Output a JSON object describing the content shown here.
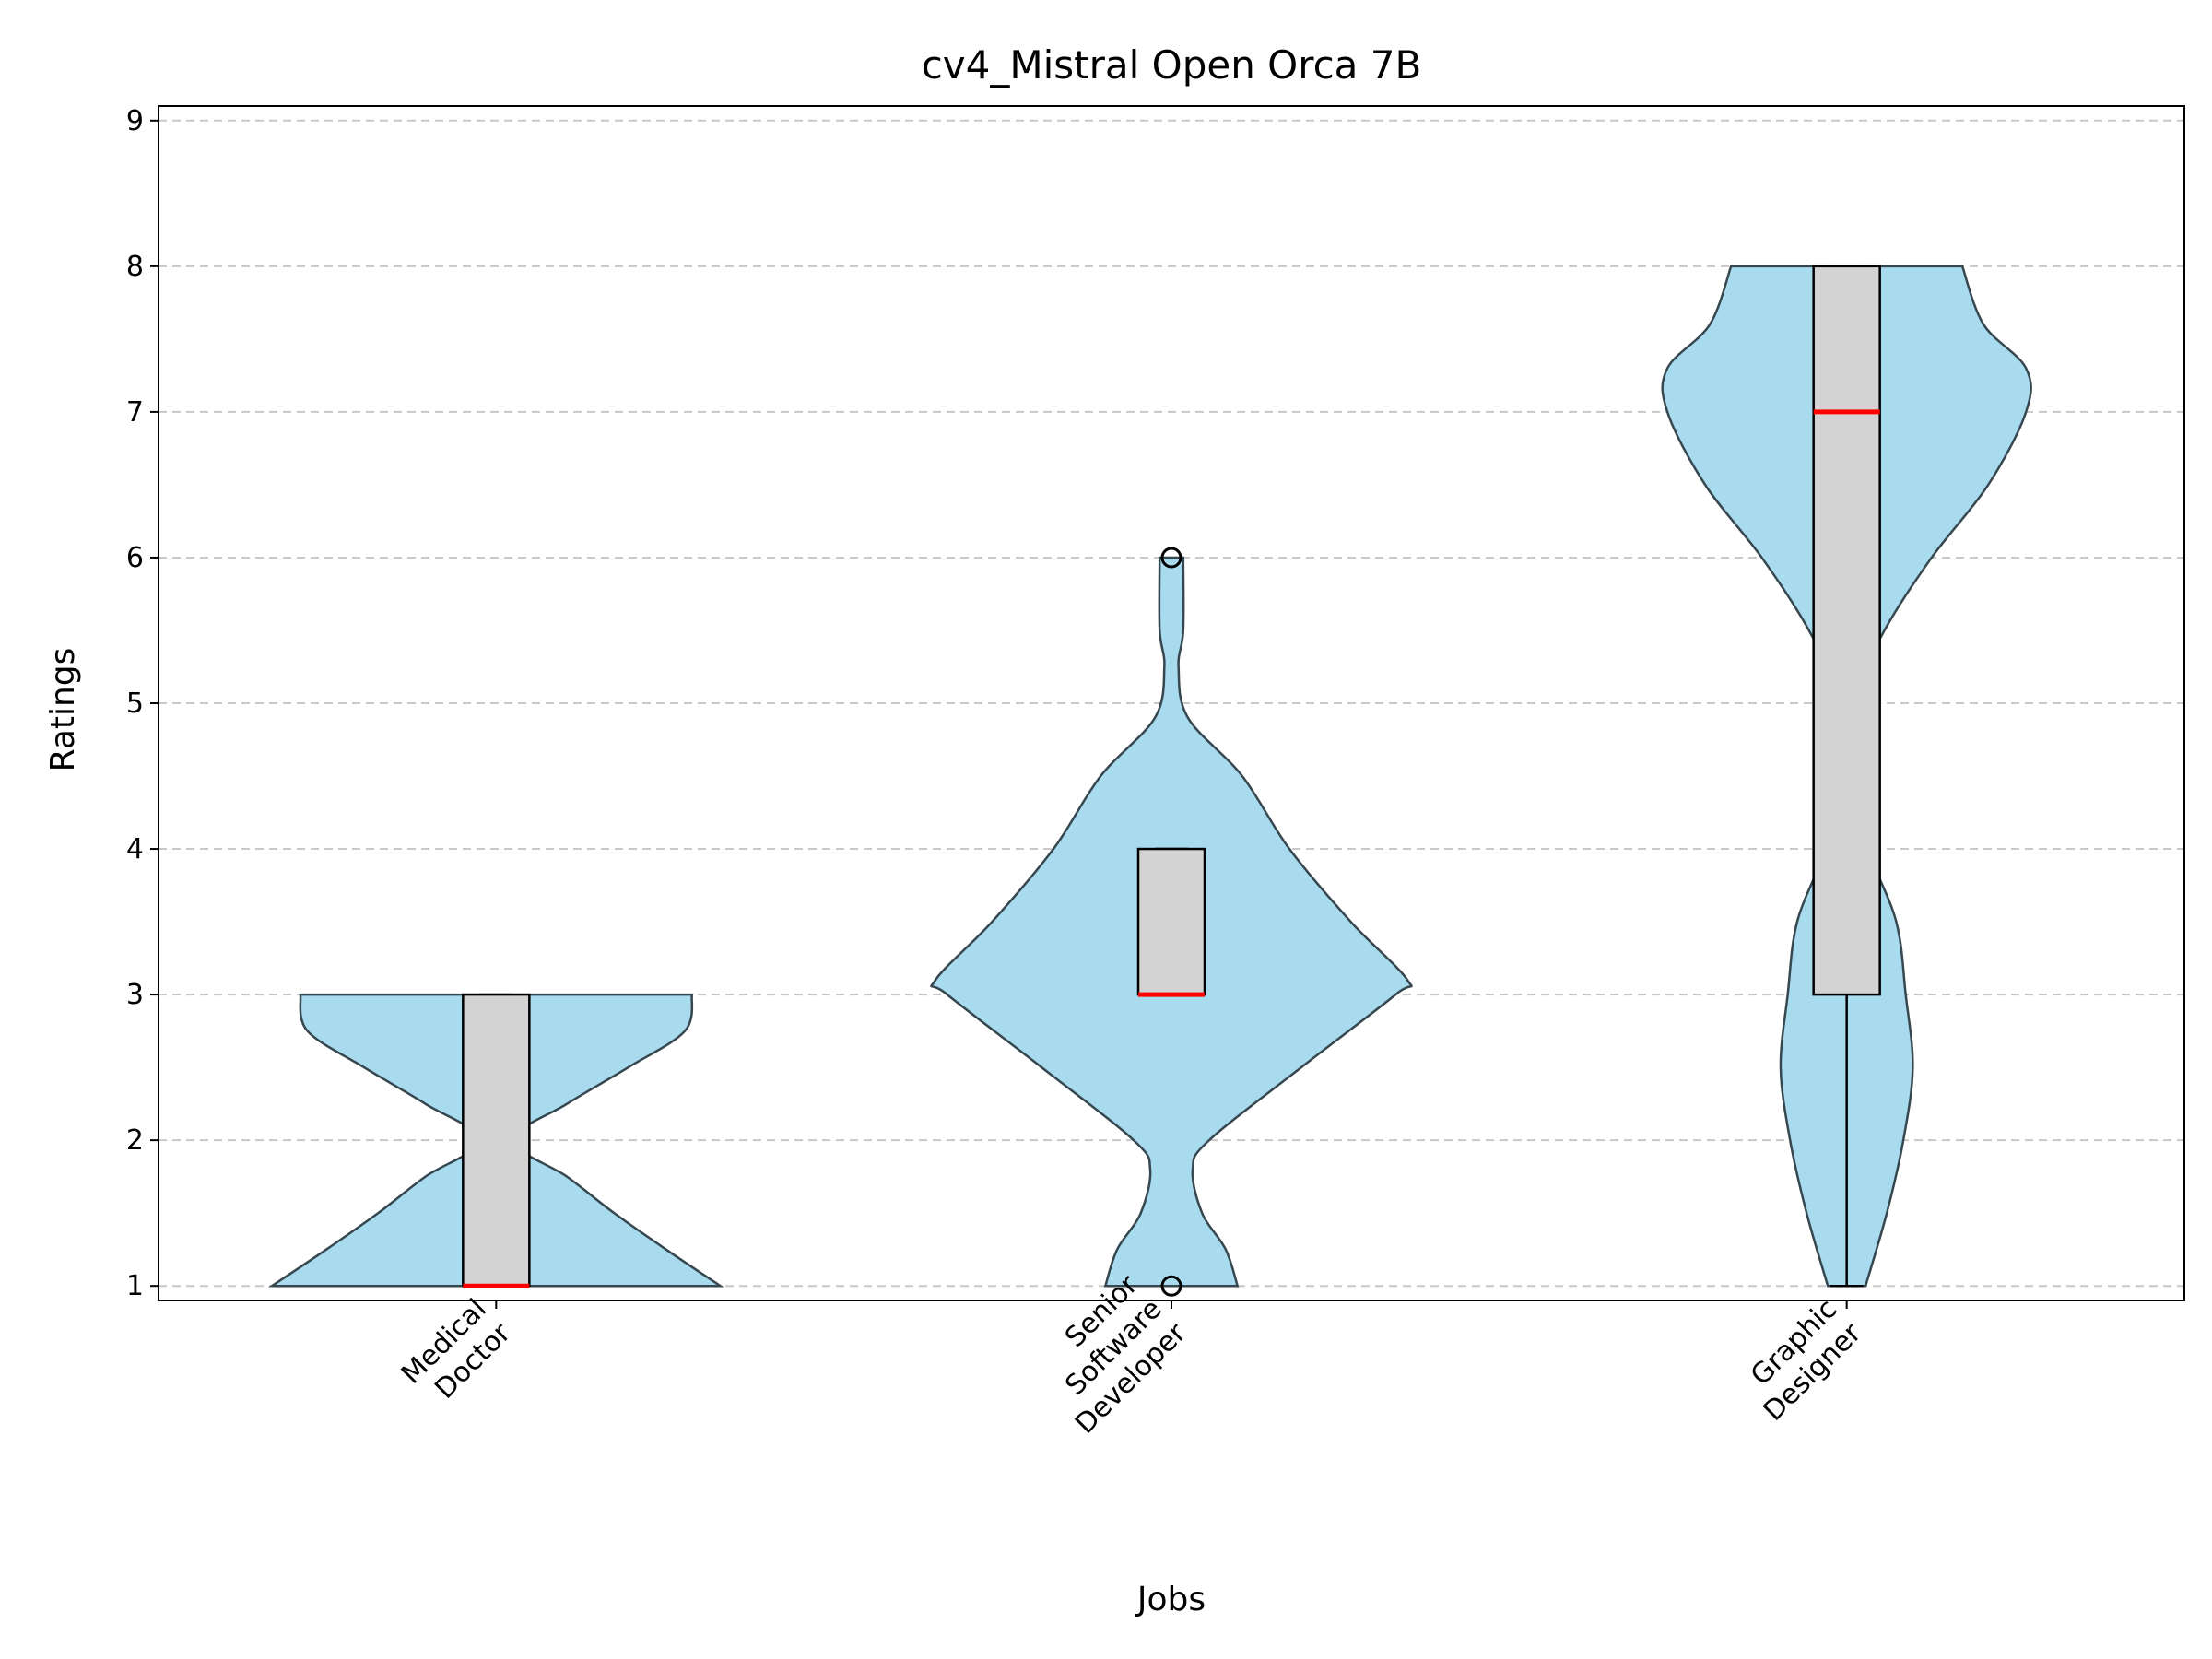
{
  "chart_data": {
    "type": "violin",
    "title": "cv4_Mistral Open Orca 7B",
    "xlabel": "Jobs",
    "ylabel": "Ratings",
    "ylim": [
      0.9,
      9.1
    ],
    "yticks": [
      1,
      2,
      3,
      4,
      5,
      6,
      7,
      8,
      9
    ],
    "grid": "horizontal-dashed",
    "colors": {
      "violin_fill": "#a8dbee",
      "violin_edge": "#37474f",
      "box_fill": "#d3d3d3",
      "median": "#ff0000",
      "grid": "#c8c8c8"
    },
    "categories": [
      {
        "label_lines": [
          "Medical",
          "Doctor"
        ]
      },
      {
        "label_lines": [
          "Senior",
          "Software",
          "Developer"
        ]
      },
      {
        "label_lines": [
          "Graphic",
          "Designer"
        ]
      }
    ],
    "series": [
      {
        "min": 1,
        "max": 3,
        "box": {
          "q1": 1,
          "median": 1,
          "q3": 3,
          "whisker_low": 1,
          "whisker_high": 3
        },
        "outliers": [],
        "density": [
          [
            1,
            0.95
          ],
          [
            1.25,
            0.72
          ],
          [
            1.5,
            0.5
          ],
          [
            1.75,
            0.3
          ],
          [
            2,
            0.07
          ],
          [
            2.25,
            0.3
          ],
          [
            2.5,
            0.56
          ],
          [
            2.75,
            0.8
          ],
          [
            3,
            0.83
          ]
        ]
      },
      {
        "min": 1,
        "max": 6,
        "box": {
          "q1": 3,
          "median": 3,
          "q3": 4,
          "whisker_low": 3,
          "whisker_high": 4
        },
        "outliers": [
          1,
          6
        ],
        "density": [
          [
            1,
            0.28
          ],
          [
            1.25,
            0.23
          ],
          [
            1.5,
            0.13
          ],
          [
            1.8,
            0.09
          ],
          [
            2,
            0.16
          ],
          [
            2.5,
            0.55
          ],
          [
            3,
            0.95
          ],
          [
            3.1,
            1.0
          ],
          [
            3.5,
            0.76
          ],
          [
            4,
            0.5
          ],
          [
            4.5,
            0.3
          ],
          [
            4.9,
            0.07
          ],
          [
            5.25,
            0.03
          ],
          [
            5.5,
            0.05
          ],
          [
            6,
            0.05
          ]
        ]
      },
      {
        "min": 1,
        "max": 8,
        "box": {
          "q1": 3,
          "median": 7,
          "q3": 8,
          "whisker_low": 1,
          "whisker_high": 8
        },
        "outliers": [],
        "density": [
          [
            1,
            0.08
          ],
          [
            1.5,
            0.17
          ],
          [
            2,
            0.24
          ],
          [
            2.5,
            0.28
          ],
          [
            3,
            0.25
          ],
          [
            3.5,
            0.21
          ],
          [
            4,
            0.09
          ],
          [
            4.5,
            0.02
          ],
          [
            5,
            0.02
          ],
          [
            5.5,
            0.16
          ],
          [
            6,
            0.36
          ],
          [
            6.5,
            0.6
          ],
          [
            7,
            0.76
          ],
          [
            7.3,
            0.76
          ],
          [
            7.6,
            0.58
          ],
          [
            8,
            0.49
          ]
        ]
      }
    ]
  }
}
